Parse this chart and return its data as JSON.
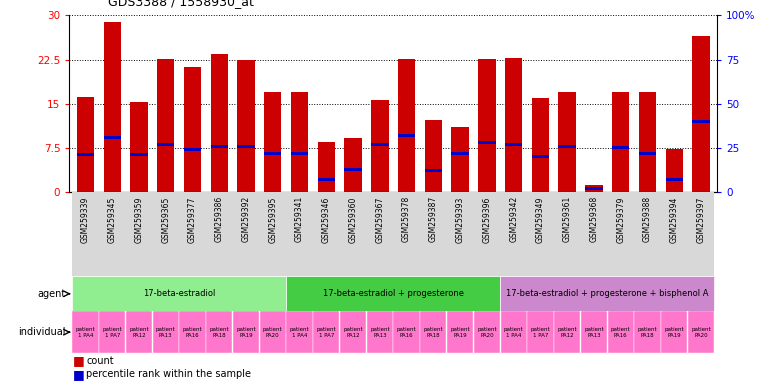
{
  "title": "GDS3388 / 1558930_at",
  "gsm_ids": [
    "GSM259339",
    "GSM259345",
    "GSM259359",
    "GSM259365",
    "GSM259377",
    "GSM259386",
    "GSM259392",
    "GSM259395",
    "GSM259341",
    "GSM259346",
    "GSM259360",
    "GSM259367",
    "GSM259378",
    "GSM259387",
    "GSM259393",
    "GSM259396",
    "GSM259342",
    "GSM259349",
    "GSM259361",
    "GSM259368",
    "GSM259379",
    "GSM259388",
    "GSM259394",
    "GSM259397"
  ],
  "bar_heights": [
    16.2,
    28.8,
    15.3,
    22.6,
    21.2,
    23.5,
    22.5,
    17.0,
    17.0,
    8.5,
    9.2,
    15.7,
    22.6,
    12.2,
    11.0,
    22.6,
    22.7,
    15.9,
    17.0,
    1.2,
    17.0,
    17.0,
    7.3,
    26.5
  ],
  "percentile_values": [
    21,
    31,
    21,
    27,
    24,
    26,
    26,
    22,
    22,
    7,
    13,
    27,
    32,
    12,
    22,
    28,
    27,
    20,
    26,
    2,
    25,
    22,
    7,
    40
  ],
  "group_labels": [
    "17-beta-estradiol",
    "17-beta-estradiol + progesterone",
    "17-beta-estradiol + progesterone + bisphenol A"
  ],
  "group_starts": [
    0,
    8,
    16
  ],
  "group_ends": [
    8,
    16,
    24
  ],
  "group_colors": [
    "#90EE90",
    "#44CC44",
    "#CC88CC"
  ],
  "indiv_labels": [
    "patient\n1 PA4",
    "patient\n1 PA7",
    "patient\nPA12",
    "patient\nPA13",
    "patient\nPA16",
    "patient\nPA18",
    "patient\nPA19",
    "patient\nPA20",
    "patient\n1 PA4",
    "patient\n1 PA7",
    "patient\nPA12",
    "patient\nPA13",
    "patient\nPA16",
    "patient\nPA18",
    "patient\nPA19",
    "patient\nPA20",
    "patient\n1 PA4",
    "patient\n1 PA7",
    "patient\nPA12",
    "patient\nPA13",
    "patient\nPA16",
    "patient\nPA18",
    "patient\nPA19",
    "patient\nPA20"
  ],
  "indiv_color": "#FF77CC",
  "indiv_alt_color": "#FF44AA",
  "ylim_left": [
    0,
    30
  ],
  "ylim_right": [
    0,
    100
  ],
  "yticks_left": [
    0,
    7.5,
    15,
    22.5,
    30
  ],
  "ytick_labels_left": [
    "0",
    "7.5",
    "15",
    "22.5",
    "30"
  ],
  "yticks_right": [
    0,
    25,
    50,
    75,
    100
  ],
  "ytick_labels_right": [
    "0",
    "25",
    "50",
    "75",
    "100%"
  ],
  "bar_color": "#CC0000",
  "percentile_color": "#0000CC",
  "xticklabel_bg": "#DDDDDD"
}
